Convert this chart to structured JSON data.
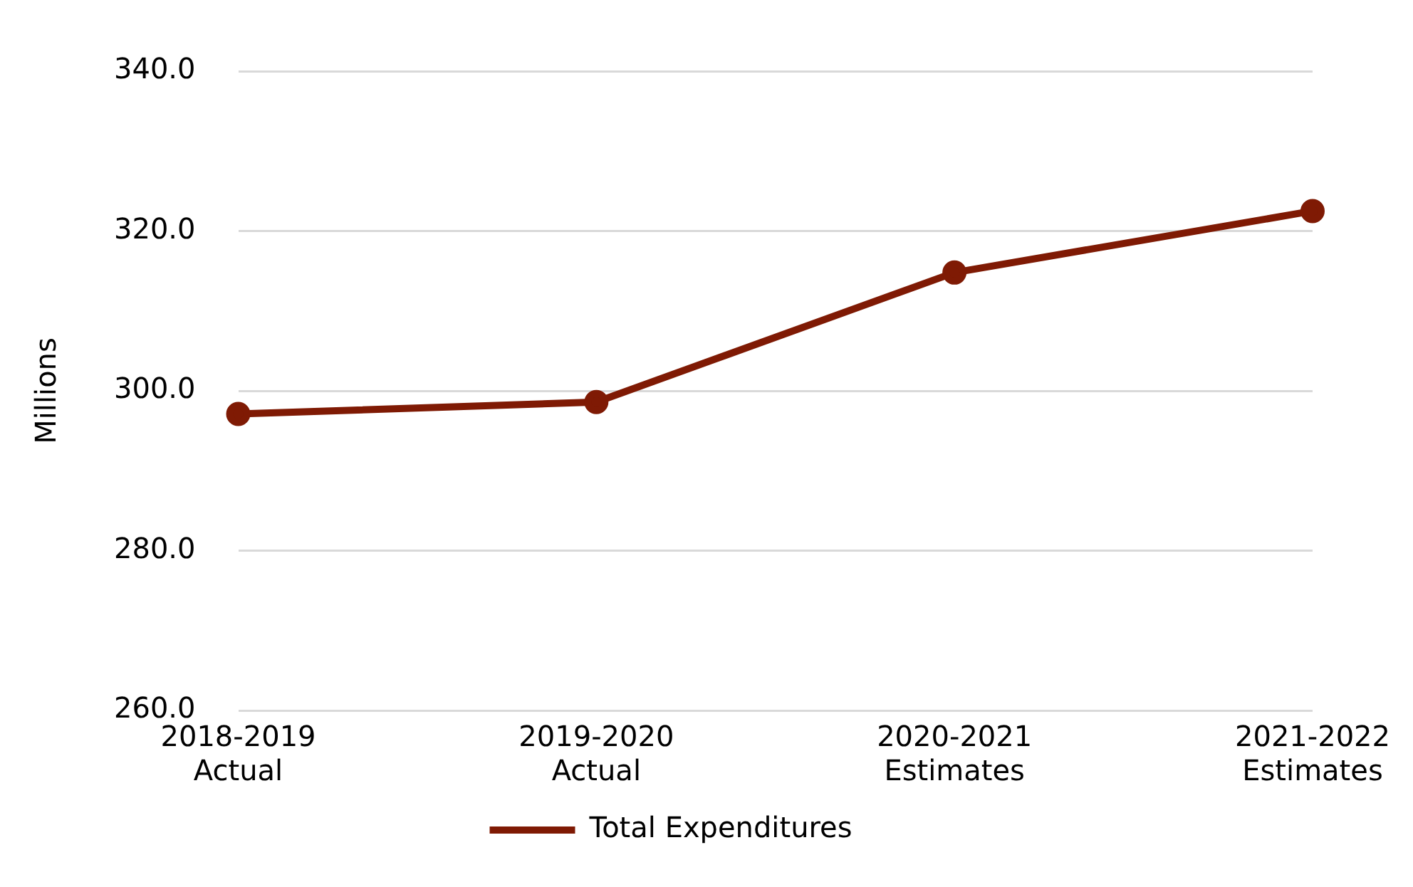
{
  "chart_data": {
    "type": "line",
    "ylabel": "Millions",
    "categories": [
      "2018-2019\nActual",
      "2019-2020\nActual",
      "2020-2021\nEstimates",
      "2021-2022\nEstimates"
    ],
    "series": [
      {
        "name": "Total Expenditures",
        "color": "#7f1a04",
        "values": [
          297.1,
          298.6,
          314.8,
          322.5
        ]
      }
    ],
    "ylim": [
      260,
      340
    ],
    "yticks": [
      {
        "value": 260,
        "label": "260.0"
      },
      {
        "value": 280,
        "label": "280.0"
      },
      {
        "value": 300,
        "label": "300.0"
      },
      {
        "value": 320,
        "label": "320.0"
      },
      {
        "value": 340,
        "label": "340.0"
      }
    ],
    "grid": "y",
    "legend": "bottom",
    "marker": "circle",
    "line_style": "solid"
  }
}
